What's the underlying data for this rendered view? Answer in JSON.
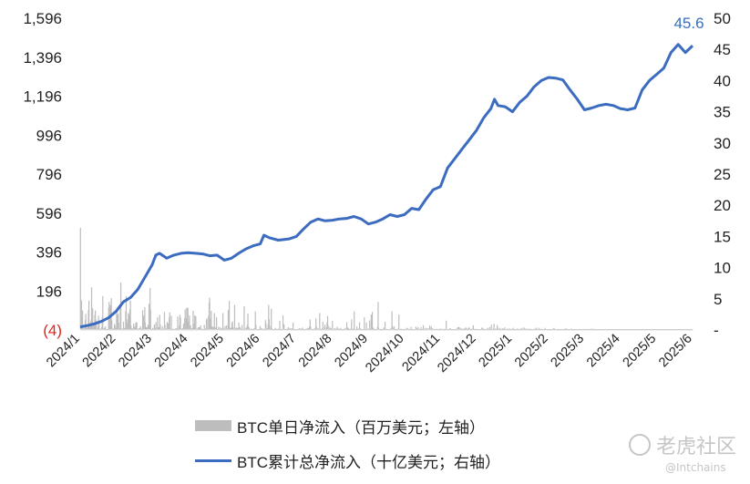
{
  "chart_data": {
    "type": "bar+line",
    "left_axis": {
      "ticks": [
        "1,596",
        "1,396",
        "1,196",
        "996",
        "796",
        "596",
        "396",
        "196",
        "(4)"
      ],
      "ylim": [
        -4,
        1596
      ]
    },
    "right_axis": {
      "ticks": [
        "50",
        "45",
        "40",
        "35",
        "30",
        "25",
        "20",
        "15",
        "10",
        "5",
        "-"
      ],
      "ylim": [
        0,
        50
      ]
    },
    "x_ticks": [
      "2024/1",
      "2024/2",
      "2024/3",
      "2024/4",
      "2024/5",
      "2024/6",
      "2024/7",
      "2024/8",
      "2024/9",
      "2024/10",
      "2024/11",
      "2024/12",
      "2025/1",
      "2025/2",
      "2025/3",
      "2025/4",
      "2025/5",
      "2025/6"
    ],
    "end_label": "45.6",
    "colors": {
      "bars": "#bdbdbd",
      "line": "#3b6cbf",
      "negative": "#e0241b",
      "end_label": "#3a6fb8"
    },
    "line_series": {
      "name": "BTC累计总净流入（十亿美元；右轴）",
      "points": [
        [
          0.0,
          0.5
        ],
        [
          0.2,
          0.7
        ],
        [
          0.4,
          1.0
        ],
        [
          0.6,
          1.4
        ],
        [
          0.8,
          2.0
        ],
        [
          1.0,
          3.0
        ],
        [
          1.2,
          4.5
        ],
        [
          1.4,
          5.2
        ],
        [
          1.6,
          6.5
        ],
        [
          1.8,
          8.5
        ],
        [
          2.0,
          10.5
        ],
        [
          2.1,
          12.0
        ],
        [
          2.2,
          12.3
        ],
        [
          2.4,
          11.5
        ],
        [
          2.6,
          12.0
        ],
        [
          2.8,
          12.3
        ],
        [
          3.0,
          12.4
        ],
        [
          3.2,
          12.3
        ],
        [
          3.4,
          12.2
        ],
        [
          3.6,
          11.9
        ],
        [
          3.8,
          12.0
        ],
        [
          4.0,
          11.2
        ],
        [
          4.2,
          11.5
        ],
        [
          4.4,
          12.3
        ],
        [
          4.6,
          13.0
        ],
        [
          4.8,
          13.5
        ],
        [
          5.0,
          13.8
        ],
        [
          5.1,
          15.2
        ],
        [
          5.25,
          14.8
        ],
        [
          5.5,
          14.4
        ],
        [
          5.8,
          14.6
        ],
        [
          6.0,
          15.0
        ],
        [
          6.2,
          16.2
        ],
        [
          6.4,
          17.3
        ],
        [
          6.6,
          17.8
        ],
        [
          6.8,
          17.5
        ],
        [
          7.0,
          17.6
        ],
        [
          7.2,
          17.8
        ],
        [
          7.4,
          17.9
        ],
        [
          7.6,
          18.2
        ],
        [
          7.8,
          17.8
        ],
        [
          8.0,
          17.0
        ],
        [
          8.2,
          17.3
        ],
        [
          8.4,
          17.8
        ],
        [
          8.6,
          18.5
        ],
        [
          8.8,
          18.2
        ],
        [
          9.0,
          18.5
        ],
        [
          9.2,
          19.5
        ],
        [
          9.4,
          19.3
        ],
        [
          9.6,
          21.0
        ],
        [
          9.8,
          22.5
        ],
        [
          10.0,
          23.0
        ],
        [
          10.2,
          26.0
        ],
        [
          10.4,
          27.5
        ],
        [
          10.6,
          29.0
        ],
        [
          10.8,
          30.5
        ],
        [
          11.0,
          32.0
        ],
        [
          11.2,
          34.0
        ],
        [
          11.4,
          35.5
        ],
        [
          11.5,
          37.0
        ],
        [
          11.6,
          36.0
        ],
        [
          11.8,
          35.8
        ],
        [
          12.0,
          35.0
        ],
        [
          12.2,
          36.5
        ],
        [
          12.4,
          37.5
        ],
        [
          12.6,
          39.0
        ],
        [
          12.8,
          40.0
        ],
        [
          13.0,
          40.5
        ],
        [
          13.2,
          40.4
        ],
        [
          13.4,
          40.1
        ],
        [
          13.6,
          38.5
        ],
        [
          13.8,
          37.0
        ],
        [
          14.0,
          35.3
        ],
        [
          14.2,
          35.6
        ],
        [
          14.4,
          36.0
        ],
        [
          14.6,
          36.2
        ],
        [
          14.8,
          36.0
        ],
        [
          15.0,
          35.5
        ],
        [
          15.2,
          35.3
        ],
        [
          15.4,
          35.6
        ],
        [
          15.6,
          38.5
        ],
        [
          15.8,
          40.0
        ],
        [
          16.0,
          41.0
        ],
        [
          16.2,
          42.0
        ],
        [
          16.4,
          44.5
        ],
        [
          16.6,
          45.8
        ],
        [
          16.8,
          44.5
        ],
        [
          17.0,
          45.6
        ]
      ]
    },
    "bar_series": {
      "name": "BTC单日净流入（百万美元；左轴）",
      "values": [
        520,
        3,
        148,
        8,
        96,
        -3,
        2,
        2,
        11,
        47,
        79,
        8,
        5,
        -1,
        13,
        98,
        147,
        -1,
        12,
        36,
        46,
        215,
        7,
        108,
        -3,
        25,
        7,
        73,
        96,
        1,
        45,
        3,
        0,
        12,
        69,
        32,
        -1,
        3,
        -3,
        -3,
        11,
        63,
        170,
        2,
        -2,
        7,
        0,
        14,
        1,
        -1,
        -1,
        -4,
        0,
        109,
        140,
        1,
        124,
        5,
        159,
        45,
        1,
        2,
        3,
        1,
        27,
        19,
        1,
        5,
        93,
        1,
        75,
        81,
        33,
        3,
        1,
        123,
        240,
        -1,
        3,
        -3,
        0,
        39,
        -2,
        6,
        0,
        94,
        170,
        32,
        1,
        51,
        83,
        76,
        -4,
        101,
        147,
        19,
        -4,
        5,
        -2,
        -1,
        28,
        -3,
        13,
        3,
        34,
        -1,
        35,
        2,
        -1,
        2,
        -3,
        6,
        5,
        15,
        1,
        2,
        -2,
        97,
        71,
        67,
        -2,
        113,
        34,
        -4,
        10,
        3,
        9,
        22,
        5,
        130,
        23,
        212,
        101,
        1,
        -3,
        -2,
        7,
        -2,
        -3,
        24,
        7,
        2,
        36,
        -2,
        1,
        61,
        2,
        10,
        -2,
        74,
        24,
        2,
        -1,
        -1,
        16,
        -2,
        1,
        2,
        88,
        22,
        -2,
        -2,
        2,
        37,
        14,
        30,
        0,
        62,
        86,
        3,
        -2,
        69,
        -4,
        -4,
        -2,
        2,
        0,
        -2,
        2,
        4,
        -2,
        4,
        -4,
        65,
        -4,
        1,
        19,
        74,
        61,
        3,
        3,
        -3,
        2,
        6,
        29,
        -1,
        57,
        102,
        -2,
        55,
        110,
        -3,
        110,
        39,
        -1,
        70,
        3,
        20,
        -1,
        2,
        6,
        -1,
        94,
        9,
        28,
        70,
        8,
        67,
        -1,
        -4,
        -2,
        7,
        10,
        -1,
        10,
        -2,
        19,
        4,
        0,
        -3,
        -3,
        -1,
        -3,
        22,
        -1,
        1,
        6,
        48,
        55,
        -2,
        -4,
        69,
        138,
        162,
        24,
        55,
        94,
        14,
        10,
        -2,
        13,
        5,
        83,
        2,
        9,
        5,
        61,
        -2,
        2,
        -2,
        13,
        -4,
        -1,
        9,
        -3,
        -1,
        4,
        1,
        83,
        4,
        0,
        -4,
        16,
        -2,
        -2,
        20,
        -3,
        -3,
        98,
        -4,
        145,
        4,
        5,
        8,
        -4,
        33,
        40,
        11,
        -4,
        -1,
        124,
        1,
        -2,
        9,
        -4,
        6,
        -2,
        5,
        34,
        -1,
        11,
        0,
        2,
        -3,
        21,
        0,
        -4,
        -3,
        118,
        -2,
        2,
        -1,
        9,
        -3,
        22,
        79,
        12,
        8,
        -2,
        -4,
        -3,
        3,
        -3,
        -2,
        -1,
        -4,
        -4,
        5,
        2,
        91,
        23,
        -1,
        -2,
        -2,
        -2,
        -2,
        -3,
        -1,
        16,
        -1,
        -2,
        5,
        -2,
        1,
        2,
        -4,
        -4,
        2,
        47,
        30,
        1,
        -4,
        5,
        22,
        125,
        51,
        2,
        -3,
        18,
        105,
        6,
        -1,
        -2,
        -2,
        -2,
        1,
        -3,
        7,
        1,
        -2,
        -4,
        -1,
        3,
        -2,
        -1,
        43,
        -4,
        -3,
        -2,
        -2,
        -4,
        71,
        4,
        26,
        -3,
        -1,
        -4,
        -3,
        2,
        -2,
        1,
        10,
        -3,
        -4,
        6,
        -4,
        2,
        1,
        4,
        -1,
        34,
        -2,
        -2,
        -1,
        -3,
        -2,
        -3,
        -2,
        -1,
        -4,
        -4,
        3,
        6,
        -4,
        -3,
        3,
        1,
        -3,
        8,
        2,
        -1,
        -3,
        -1,
        0,
        -3,
        3,
        -1,
        4,
        -2,
        6,
        -1,
        15,
        50,
        12,
        -4,
        -2,
        -1,
        -2,
        0,
        3,
        -4,
        -3,
        6,
        55,
        13,
        -4,
        2,
        2,
        4,
        -2,
        83,
        1,
        -1,
        -3,
        1,
        5,
        38,
        -4,
        -3,
        11,
        23,
        -2,
        -4,
        9,
        36,
        68,
        19,
        -3,
        -3,
        11,
        -1,
        5,
        -1,
        0,
        43,
        -4,
        -2,
        -4,
        3,
        6,
        -4,
        -1,
        -4,
        12,
        -4,
        4,
        -3,
        -2,
        -1,
        6,
        1,
        -3,
        1,
        -2,
        -1,
        -3,
        -2,
        -2,
        6,
        -3,
        -1,
        36,
        10,
        1,
        6,
        -4,
        1,
        -1,
        2,
        -1,
        50,
        -1,
        -2,
        -1,
        5,
        91,
        -2,
        -3,
        -1,
        -1,
        14,
        -1,
        -4,
        3,
        -2,
        36,
        6,
        -1,
        -2,
        -3,
        -4,
        -2,
        -3,
        -3,
        62,
        -2,
        -1,
        -1,
        34,
        -1,
        2,
        -2,
        -1,
        4,
        45,
        -1,
        -2,
        75,
        -3,
        89,
        1,
        8,
        2,
        1,
        1,
        -3,
        -3,
        -3,
        -1,
        13,
        140,
        6,
        -4,
        -3,
        -2,
        1,
        -2,
        -3,
        2,
        -3,
        -1,
        8,
        -2,
        38,
        -4,
        -4,
        -3,
        -2,
        -4,
        -1,
        -2,
        -1,
        -4,
        -2,
        3,
        4,
        92,
        16,
        4,
        -4,
        14,
        -3,
        -3,
        -3,
        1,
        1,
        -4,
        -3,
        3,
        75,
        -3,
        -2,
        -4,
        2,
        -1,
        -4,
        -4,
        -4,
        -4,
        2,
        -1,
        -4,
        -3,
        -4,
        7,
        -3,
        4,
        -1,
        -2,
        -2,
        0,
        -2,
        12,
        -1,
        -1,
        -3,
        0,
        -1,
        0,
        -3,
        -4,
        13,
        5,
        -2,
        -3,
        11,
        -3,
        -2,
        2,
        -1,
        -2,
        10,
        -4,
        -2,
        -4,
        20,
        -4,
        0,
        -1,
        7,
        1,
        -1,
        3,
        4,
        -1,
        -2,
        5,
        19,
        3,
        -1,
        14,
        -4,
        4,
        3,
        -1,
        -1,
        -4,
        -1,
        -4,
        -4,
        2,
        1,
        -2,
        -1,
        -1,
        2,
        -4,
        -3,
        3,
        2,
        -4,
        -4,
        -4,
        -3,
        -1,
        2,
        0,
        -3,
        44,
        -2,
        -1,
        -1,
        -3,
        -1,
        -1,
        6,
        -1,
        2,
        -2,
        -2,
        -4,
        -2,
        -2,
        -2,
        -2,
        -2,
        2,
        -1,
        -3,
        3,
        11,
        5,
        11,
        -3,
        -1,
        7,
        3,
        -2,
        -4,
        2,
        -1,
        1,
        4,
        2,
        -2,
        9,
        2,
        3,
        -1,
        -3,
        7,
        9,
        -1,
        2,
        -1,
        -1,
        -4,
        -2,
        4,
        20,
        -1,
        1,
        -2,
        2,
        -4,
        -4,
        -2,
        -2,
        -3,
        -4,
        -2,
        -2,
        -3,
        -2,
        -3,
        8,
        -3,
        6,
        -2,
        1,
        -2,
        -3,
        1,
        -4,
        -2,
        2,
        7,
        -3,
        -1,
        1,
        10,
        -1,
        -2,
        23,
        -3,
        -3,
        2,
        -1,
        28,
        -4,
        -1,
        3,
        -4,
        -2,
        21,
        8,
        -2,
        -2,
        -4,
        7,
        1,
        -3,
        -2,
        3,
        -4,
        4,
        -3,
        -4,
        9,
        -4,
        -1,
        -1,
        -1,
        3,
        -3,
        -3,
        -3,
        4,
        -4,
        -3,
        -4,
        -4,
        -2,
        2,
        7,
        -1,
        -1,
        -2,
        -4,
        -4,
        -1,
        -2,
        4,
        -2,
        -3,
        -2,
        -3,
        -4,
        3,
        1,
        -1,
        7,
        -1,
        -2,
        -3,
        8,
        -4,
        3,
        -4,
        2,
        1,
        2,
        -1,
        1,
        -3,
        -3,
        3,
        -2,
        -3,
        -1,
        -3,
        -4,
        -4,
        -3,
        2,
        -2,
        -3,
        4,
        8,
        -3,
        -1,
        -4,
        -3,
        7,
        -3,
        -4,
        -2,
        2,
        -3,
        -3,
        -2,
        -1,
        -4,
        -1,
        7,
        -4,
        -3,
        -3,
        -4,
        -1,
        -3,
        -4,
        -2,
        -1,
        -2,
        0,
        1,
        -2,
        -2,
        -2,
        4,
        7,
        -4,
        -4,
        -2,
        -2,
        -4,
        1,
        -3,
        -2,
        -2,
        -1,
        -2,
        -4,
        1,
        -2,
        1,
        -3,
        -1,
        -3,
        1,
        -4,
        -4,
        5,
        -3,
        -1,
        1,
        -4,
        -1,
        -3,
        -2,
        -4,
        -4,
        3,
        -1,
        -4,
        -1,
        -2,
        -1,
        -3,
        -4,
        -4,
        -2,
        -2,
        -2,
        -2,
        -1,
        -4,
        -2,
        -1,
        -2,
        -1,
        -3,
        0,
        -3,
        -2,
        -2,
        -3,
        -1,
        1,
        -4,
        -1,
        -4,
        -2,
        -2,
        -4,
        -1,
        -2,
        -4,
        -3,
        2,
        -1,
        2,
        -3,
        2,
        -3,
        -4,
        -1,
        -3,
        -4,
        -3,
        -2,
        -3,
        -4,
        -3,
        -4,
        -1,
        -1,
        -3,
        -4,
        0,
        -2,
        -2,
        -2,
        -4,
        -2,
        -1,
        -3,
        -4,
        -2,
        -1,
        -4,
        -1,
        -4,
        -4,
        -2,
        -4,
        -2,
        -4,
        -4,
        -2,
        -4,
        -3,
        -2,
        -3,
        -3,
        -3,
        -4,
        -4,
        -2,
        -4,
        -4,
        -1,
        -4,
        -3,
        -2,
        -2,
        -4,
        -3,
        -2,
        -3,
        -4,
        -3,
        -2,
        -3,
        -3,
        -2,
        -1,
        -2,
        -4,
        -4,
        -3,
        -2,
        -3,
        -4,
        -4,
        -2,
        -4,
        -4,
        -2,
        -2,
        -4,
        -3,
        -2,
        -2,
        -2,
        -3,
        -4,
        -4,
        -2,
        -3,
        -2,
        -3,
        -4,
        -3,
        -4,
        -3,
        -3,
        -4,
        -3,
        -2,
        -4,
        -4,
        -3,
        -4,
        -2,
        -3,
        -4,
        -3,
        -4,
        -3,
        -3,
        -2,
        -2,
        -4,
        -4,
        -3,
        -4,
        -4,
        -4,
        -3,
        -4,
        -4,
        -4,
        -4,
        -3,
        -2,
        -4,
        -4,
        -3,
        -3,
        -4,
        -4,
        -4,
        -4,
        -4,
        -3,
        -3,
        -4,
        -4,
        -4,
        -3,
        -4,
        -4,
        -3,
        -4,
        -4,
        -3,
        -3,
        -4,
        -4,
        -4,
        -4,
        -4,
        -4,
        -4,
        -4,
        -4,
        -4,
        -4,
        -4,
        -4,
        -4,
        -4,
        -4,
        -4,
        -4,
        -4,
        -4,
        -4,
        -4,
        -4,
        -4,
        -4,
        -4,
        -4,
        -4,
        -4,
        -4,
        -4,
        -4,
        -4,
        -4,
        -4,
        -4,
        -4,
        -4,
        -4,
        -4,
        -4,
        -4,
        -4
      ]
    }
  },
  "legend": {
    "bar_label": "BTC单日净流入（百万美元；左轴）",
    "line_label": "BTC累计总净流入（十亿美元；右轴）"
  },
  "watermark": {
    "brand": "老虎社区",
    "handle": "@Intchains"
  }
}
